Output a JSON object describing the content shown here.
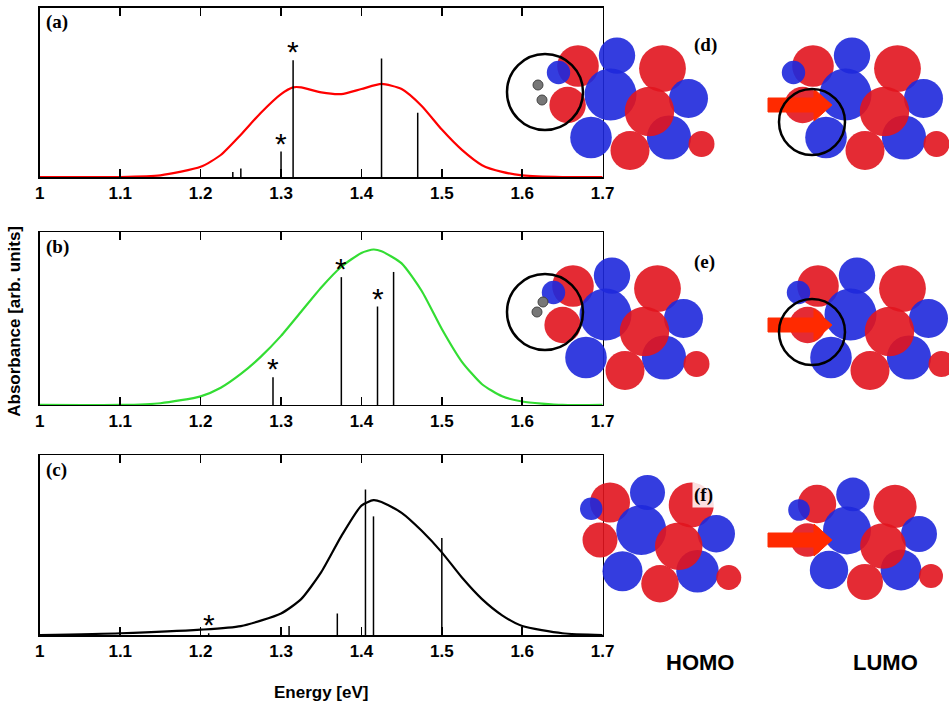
{
  "chart_data": [
    {
      "type": "line",
      "label": "(a)",
      "xlim": [
        1,
        1.7
      ],
      "xticks": [
        1,
        1.1,
        1.2,
        1.3,
        1.4,
        1.5,
        1.6,
        1.7
      ],
      "ylim": [
        0,
        1
      ],
      "tick_labels": "x",
      "mark_label": "*",
      "series": [
        {
          "type": "line",
          "color": "#ff0000",
          "x": [
            1.0,
            1.1,
            1.15,
            1.2,
            1.225,
            1.25,
            1.275,
            1.3,
            1.315,
            1.325,
            1.35,
            1.375,
            1.4,
            1.425,
            1.45,
            1.475,
            1.5,
            1.525,
            1.55,
            1.575,
            1.6,
            1.65,
            1.7
          ],
          "values": [
            0,
            0,
            0.01,
            0.06,
            0.13,
            0.25,
            0.38,
            0.49,
            0.53,
            0.53,
            0.5,
            0.49,
            0.52,
            0.55,
            0.52,
            0.42,
            0.28,
            0.16,
            0.07,
            0.03,
            0.01,
            0,
            0
          ]
        },
        {
          "type": "stick",
          "color": "#000000",
          "x": [
            1.24,
            1.25,
            1.3,
            1.315,
            1.425,
            1.47
          ],
          "values": [
            0.03,
            0.05,
            0.15,
            0.69,
            0.7,
            0.38
          ],
          "marked": [
            false,
            false,
            true,
            true,
            false,
            false
          ]
        }
      ]
    },
    {
      "type": "line",
      "label": "(b)",
      "xlim": [
        1,
        1.7
      ],
      "xticks": [
        1,
        1.1,
        1.2,
        1.3,
        1.4,
        1.5,
        1.6,
        1.7
      ],
      "ylim": [
        0,
        1
      ],
      "tick_labels": "x",
      "mark_label": "*",
      "ylabel": "Absorbance [arb. units]",
      "series": [
        {
          "type": "line",
          "color": "#33dd33",
          "x": [
            1.0,
            1.1,
            1.15,
            1.2,
            1.225,
            1.25,
            1.275,
            1.3,
            1.325,
            1.35,
            1.375,
            1.4,
            1.415,
            1.425,
            1.45,
            1.475,
            1.5,
            1.525,
            1.55,
            1.575,
            1.6,
            1.65,
            1.7
          ],
          "values": [
            0,
            0,
            0.01,
            0.05,
            0.1,
            0.18,
            0.28,
            0.4,
            0.54,
            0.68,
            0.8,
            0.88,
            0.9,
            0.89,
            0.82,
            0.66,
            0.44,
            0.25,
            0.12,
            0.05,
            0.02,
            0,
            0
          ]
        },
        {
          "type": "stick",
          "color": "#000000",
          "x": [
            1.29,
            1.3,
            1.375,
            1.42,
            1.44
          ],
          "values": [
            0.16,
            0.04,
            0.74,
            0.57,
            0.77
          ],
          "marked": [
            true,
            false,
            true,
            true,
            false
          ]
        }
      ]
    },
    {
      "type": "line",
      "label": "(c)",
      "xlim": [
        1,
        1.7
      ],
      "xticks": [
        1,
        1.1,
        1.2,
        1.3,
        1.4,
        1.5,
        1.6,
        1.7
      ],
      "ylim": [
        0,
        1
      ],
      "tick_labels": "x",
      "mark_label": "*",
      "xlabel": "Energy [eV]",
      "series": [
        {
          "type": "line",
          "color": "#000000",
          "x": [
            1.0,
            1.1,
            1.2,
            1.25,
            1.3,
            1.325,
            1.35,
            1.375,
            1.4,
            1.415,
            1.425,
            1.45,
            1.475,
            1.5,
            1.525,
            1.55,
            1.575,
            1.6,
            1.65,
            1.7
          ],
          "values": [
            0,
            0.01,
            0.03,
            0.05,
            0.12,
            0.2,
            0.35,
            0.55,
            0.72,
            0.75,
            0.74,
            0.68,
            0.58,
            0.46,
            0.32,
            0.2,
            0.11,
            0.05,
            0.01,
            0
          ]
        },
        {
          "type": "stick",
          "color": "#000000",
          "x": [
            1.21,
            1.31,
            1.37,
            1.405,
            1.415,
            1.5
          ],
          "values": [
            0.01,
            0.05,
            0.12,
            0.81,
            0.66,
            0.54
          ],
          "marked": [
            true,
            false,
            false,
            false,
            false,
            false
          ]
        }
      ]
    }
  ],
  "orbital_panels": {
    "labels": [
      "(d)",
      "(e)",
      "(f)"
    ],
    "columns": [
      "HOMO",
      "LUMO"
    ]
  }
}
